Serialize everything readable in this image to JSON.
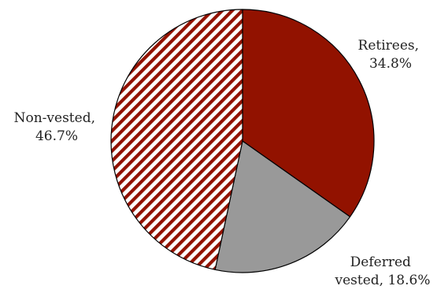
{
  "chart_data": {
    "type": "pie",
    "start_angle_deg": 0,
    "direction": "clockwise",
    "slices": [
      {
        "label_line1": "Retirees,",
        "label_line2": "34.8%",
        "name": "Retirees",
        "value": 34.8,
        "fill": "#921200",
        "pattern": "solid"
      },
      {
        "label_line1": "Deferred",
        "label_line2": "vested, 18.6%",
        "name": "Deferred vested",
        "value": 18.6,
        "fill": "#999999",
        "pattern": "solid"
      },
      {
        "label_line1": "Non-vested,",
        "label_line2": "46.7%",
        "name": "Non-vested",
        "value": 46.7,
        "fill": "#921200",
        "pattern": "diagonal-hatch"
      }
    ],
    "edge_color": "#000000",
    "legend": "none"
  }
}
